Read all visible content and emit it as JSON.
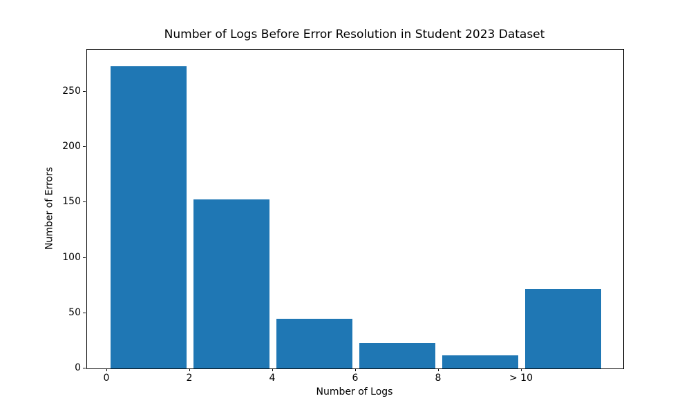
{
  "chart_data": {
    "type": "bar",
    "title": "Number of Logs Before Error Resolution in Student 2023 Dataset",
    "xlabel": "Number of Logs",
    "ylabel": "Number of Errors",
    "categories": [
      "0",
      "2",
      "4",
      "6",
      "8",
      "> 10"
    ],
    "values": [
      273,
      153,
      45,
      23,
      12,
      72
    ],
    "bar_centers": [
      1,
      3,
      5,
      7,
      9,
      11
    ],
    "xtick_values": [
      0,
      2,
      4,
      6,
      8,
      10
    ],
    "xtick_labels": [
      "0",
      "2",
      "4",
      "6",
      "8",
      "> 10"
    ],
    "ytick_values": [
      0,
      50,
      100,
      150,
      200,
      250
    ],
    "ytick_labels": [
      "0",
      "50",
      "100",
      "150",
      "200",
      "250"
    ],
    "xlim": [
      -0.5,
      12.45
    ],
    "ylim": [
      0,
      288
    ],
    "bar_width_units": 1.83,
    "bar_color": "#1f77b4",
    "grid": false,
    "legend": "none"
  }
}
